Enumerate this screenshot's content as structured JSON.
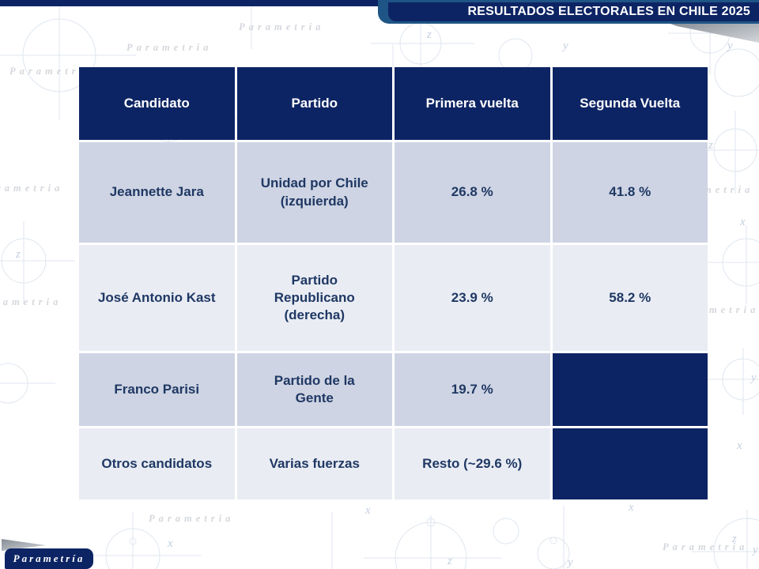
{
  "banner": {
    "title": "RESULTADOS ELECTORALES EN CHILE 2025"
  },
  "logo": {
    "text": "Parametría"
  },
  "background": {
    "watermark": "Parametria",
    "letters": {
      "x": "x",
      "y": "y",
      "z": "z"
    }
  },
  "table": {
    "columns": [
      "Candidato",
      "Partido",
      "Primera vuelta",
      "Segunda Vuelta"
    ],
    "rows": [
      {
        "candidato": "Jeannette Jara",
        "partido": "Unidad por Chile\n(izquierda)",
        "primera_vuelta": "26.8 %",
        "segunda_vuelta": "41.8 %"
      },
      {
        "candidato": "José Antonio Kast",
        "partido": "Partido\nRepublicano\n(derecha)",
        "primera_vuelta": "23.9 %",
        "segunda_vuelta": "58.2 %"
      },
      {
        "candidato": "Franco Parisi",
        "partido": "Partido de la\nGente",
        "primera_vuelta": "19.7 %",
        "segunda_vuelta": ""
      },
      {
        "candidato": "Otros candidatos",
        "partido": "Varias fuerzas",
        "primera_vuelta": "Resto (~29.6 %)",
        "segunda_vuelta": ""
      }
    ]
  },
  "colors": {
    "navy": "#0d2464",
    "banner-blue": "#1f5486",
    "row-shade-a": "#ced4e3",
    "row-shade-b": "#e9ecf3",
    "body-text": "#1f3864"
  }
}
